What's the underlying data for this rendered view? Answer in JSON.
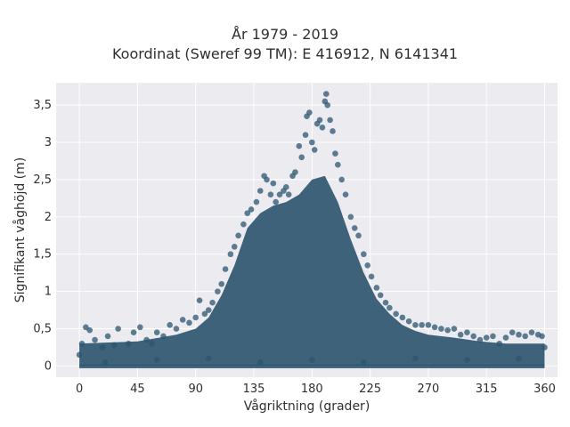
{
  "chart_data": {
    "type": "scatter",
    "title_line1": "År 1979 - 2019",
    "title_line2": "Koordinat (Sweref 99 TM): E 416912, N 6141341",
    "xlabel": "Vågriktning (grader)",
    "ylabel": "Signifikant våghöjd (m)",
    "xlim": [
      -18,
      370
    ],
    "ylim": [
      -0.15,
      3.8
    ],
    "x_ticks": [
      0,
      45,
      90,
      135,
      180,
      225,
      270,
      315,
      360
    ],
    "x_tick_labels": [
      "0",
      "45",
      "90",
      "135",
      "180",
      "225",
      "270",
      "315",
      "360"
    ],
    "y_ticks": [
      0,
      0.5,
      1,
      1.5,
      2,
      2.5,
      3,
      3.5
    ],
    "y_tick_labels": [
      "0",
      "0,5",
      "1",
      "1,5",
      "2",
      "2,5",
      "3",
      "3,5"
    ],
    "grid": true,
    "point_color": "#2e5670",
    "series": [
      {
        "values": [
          [
            0,
            0.15
          ],
          [
            2,
            0.3
          ],
          [
            5,
            0.52
          ],
          [
            8,
            0.48
          ],
          [
            12,
            0.35
          ],
          [
            18,
            0.25
          ],
          [
            22,
            0.4
          ],
          [
            27,
            0.28
          ],
          [
            30,
            0.5
          ],
          [
            38,
            0.3
          ],
          [
            42,
            0.45
          ],
          [
            47,
            0.52
          ],
          [
            52,
            0.35
          ],
          [
            56,
            0.3
          ],
          [
            60,
            0.45
          ],
          [
            65,
            0.4
          ],
          [
            70,
            0.55
          ],
          [
            75,
            0.5
          ],
          [
            80,
            0.62
          ],
          [
            85,
            0.58
          ],
          [
            90,
            0.65
          ],
          [
            93,
            0.88
          ],
          [
            97,
            0.7
          ],
          [
            100,
            0.75
          ],
          [
            103,
            0.85
          ],
          [
            107,
            1.0
          ],
          [
            110,
            1.1
          ],
          [
            113,
            1.3
          ],
          [
            117,
            1.5
          ],
          [
            120,
            1.6
          ],
          [
            123,
            1.75
          ],
          [
            127,
            1.9
          ],
          [
            130,
            2.05
          ],
          [
            133,
            2.1
          ],
          [
            137,
            2.2
          ],
          [
            140,
            2.35
          ],
          [
            143,
            2.55
          ],
          [
            145,
            2.5
          ],
          [
            148,
            2.3
          ],
          [
            150,
            2.45
          ],
          [
            152,
            2.2
          ],
          [
            155,
            2.3
          ],
          [
            158,
            2.35
          ],
          [
            160,
            2.4
          ],
          [
            162,
            2.3
          ],
          [
            165,
            2.55
          ],
          [
            167,
            2.6
          ],
          [
            170,
            2.95
          ],
          [
            172,
            2.8
          ],
          [
            175,
            3.1
          ],
          [
            176,
            3.35
          ],
          [
            178,
            3.4
          ],
          [
            180,
            3.0
          ],
          [
            182,
            2.9
          ],
          [
            184,
            3.25
          ],
          [
            186,
            3.3
          ],
          [
            188,
            3.2
          ],
          [
            190,
            3.55
          ],
          [
            191,
            3.65
          ],
          [
            192,
            3.5
          ],
          [
            194,
            3.3
          ],
          [
            196,
            3.15
          ],
          [
            198,
            2.85
          ],
          [
            200,
            2.7
          ],
          [
            203,
            2.5
          ],
          [
            206,
            2.3
          ],
          [
            210,
            2.0
          ],
          [
            213,
            1.85
          ],
          [
            216,
            1.75
          ],
          [
            220,
            1.5
          ],
          [
            223,
            1.35
          ],
          [
            226,
            1.2
          ],
          [
            230,
            1.05
          ],
          [
            233,
            0.95
          ],
          [
            237,
            0.85
          ],
          [
            240,
            0.78
          ],
          [
            245,
            0.7
          ],
          [
            250,
            0.65
          ],
          [
            255,
            0.6
          ],
          [
            260,
            0.55
          ],
          [
            265,
            0.55
          ],
          [
            270,
            0.55
          ],
          [
            275,
            0.52
          ],
          [
            280,
            0.5
          ],
          [
            285,
            0.48
          ],
          [
            290,
            0.5
          ],
          [
            295,
            0.42
          ],
          [
            300,
            0.45
          ],
          [
            305,
            0.4
          ],
          [
            310,
            0.35
          ],
          [
            315,
            0.38
          ],
          [
            320,
            0.4
          ],
          [
            325,
            0.3
          ],
          [
            330,
            0.38
          ],
          [
            335,
            0.45
          ],
          [
            340,
            0.42
          ],
          [
            345,
            0.4
          ],
          [
            350,
            0.45
          ],
          [
            355,
            0.42
          ],
          [
            358,
            0.4
          ],
          [
            360,
            0.25
          ],
          [
            20,
            0.05
          ],
          [
            60,
            0.08
          ],
          [
            100,
            0.1
          ],
          [
            140,
            0.05
          ],
          [
            180,
            0.08
          ],
          [
            220,
            0.05
          ],
          [
            260,
            0.1
          ],
          [
            300,
            0.08
          ],
          [
            340,
            0.1
          ]
        ],
        "dense_envelope": [
          [
            0,
            0.3
          ],
          [
            45,
            0.33
          ],
          [
            75,
            0.42
          ],
          [
            90,
            0.5
          ],
          [
            100,
            0.65
          ],
          [
            110,
            0.95
          ],
          [
            120,
            1.35
          ],
          [
            130,
            1.85
          ],
          [
            140,
            2.05
          ],
          [
            150,
            2.15
          ],
          [
            160,
            2.2
          ],
          [
            170,
            2.3
          ],
          [
            180,
            2.5
          ],
          [
            190,
            2.55
          ],
          [
            200,
            2.2
          ],
          [
            210,
            1.7
          ],
          [
            220,
            1.25
          ],
          [
            230,
            0.9
          ],
          [
            240,
            0.7
          ],
          [
            250,
            0.55
          ],
          [
            260,
            0.47
          ],
          [
            270,
            0.42
          ],
          [
            290,
            0.38
          ],
          [
            310,
            0.33
          ],
          [
            330,
            0.3
          ],
          [
            360,
            0.3
          ]
        ]
      }
    ]
  }
}
